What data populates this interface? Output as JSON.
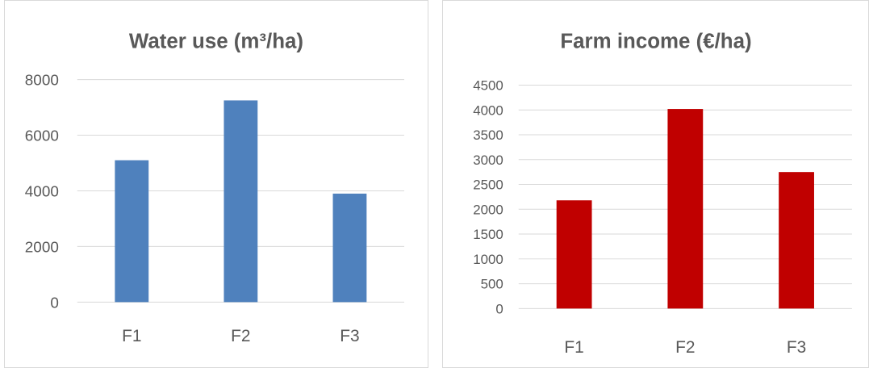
{
  "chart_data": [
    {
      "type": "bar",
      "title": "Water use (m³/ha)",
      "categories": [
        "F1",
        "F2",
        "F3"
      ],
      "values": [
        5100,
        7250,
        3900
      ],
      "xlabel": "",
      "ylabel": "",
      "ylim": [
        0,
        8000
      ],
      "yticks": [
        "0",
        "2000",
        "4000",
        "6000",
        "8000"
      ],
      "grid": true,
      "legend": "none",
      "bar_color": "#4f81bd"
    },
    {
      "type": "bar",
      "title": "Farm income (€/ha)",
      "categories": [
        "F1",
        "F2",
        "F3"
      ],
      "values": [
        2180,
        4020,
        2750
      ],
      "xlabel": "",
      "ylabel": "",
      "ylim": [
        0,
        4500
      ],
      "yticks": [
        "0",
        "500",
        "1000",
        "1500",
        "2000",
        "2500",
        "3000",
        "3500",
        "4000",
        "4500"
      ],
      "grid": true,
      "legend": "none",
      "bar_color": "#c00000"
    }
  ]
}
